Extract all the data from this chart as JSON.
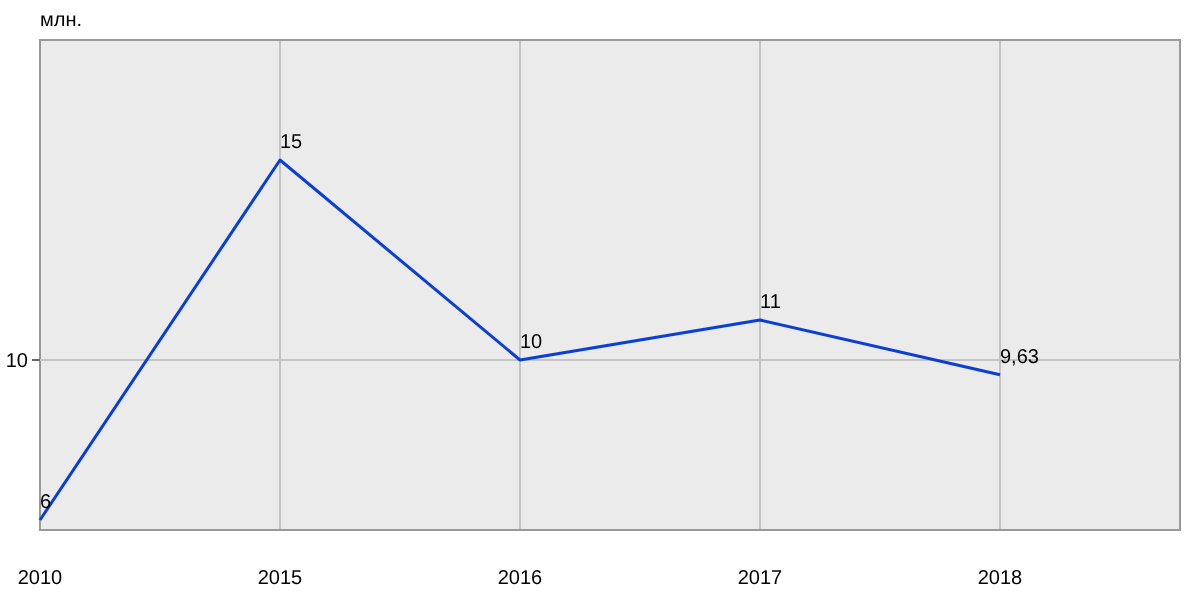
{
  "chart_data": {
    "type": "line",
    "ylabel": "млн.",
    "categories": [
      "2010",
      "2015",
      "2016",
      "2017",
      "2018"
    ],
    "series": [
      {
        "color": "#0a3fd6",
        "values": [
          6,
          15,
          10,
          11,
          9.63
        ],
        "value_labels": [
          "6",
          "15",
          "10",
          "11",
          "9,63"
        ]
      }
    ],
    "ylim": [
      5.75,
      18
    ],
    "ref_lines": [
      {
        "axis": "y",
        "value": 10,
        "label": "10",
        "color": "#c4c4c4"
      }
    ],
    "grid": "x",
    "marker": "none",
    "line_style": "solid"
  }
}
